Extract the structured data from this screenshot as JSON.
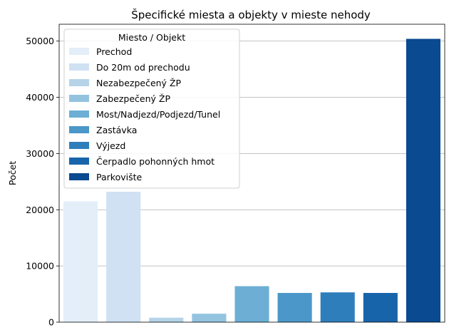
{
  "chart_data": {
    "type": "bar",
    "title": "Špecifické miesta a objekty v mieste nehody",
    "xlabel": "",
    "ylabel": "Počet",
    "ylim": [
      0,
      53000
    ],
    "yticks": [
      0,
      10000,
      20000,
      30000,
      40000,
      50000
    ],
    "grid": "y",
    "legend_title": "Miesto / Objekt",
    "legend_position": "upper-left",
    "categories": [
      "Prechod",
      "Do 20m od prechodu",
      "Nezabezpečený ŽP",
      "Zabezpečený ŽP",
      "Most/Nadjezd/Podjezd/Tunel",
      "Zastávka",
      "Výjezd",
      "Čerpadlo pohonných hmot",
      "Parkovište"
    ],
    "values": [
      21500,
      23200,
      800,
      1500,
      6400,
      5200,
      5300,
      5200,
      50400
    ],
    "colors": [
      "#e3eef9",
      "#cfe1f2",
      "#b5d4e9",
      "#93c3df",
      "#6daed5",
      "#4b97c9",
      "#2f7ebc",
      "#1864aa",
      "#0a4a90"
    ]
  }
}
